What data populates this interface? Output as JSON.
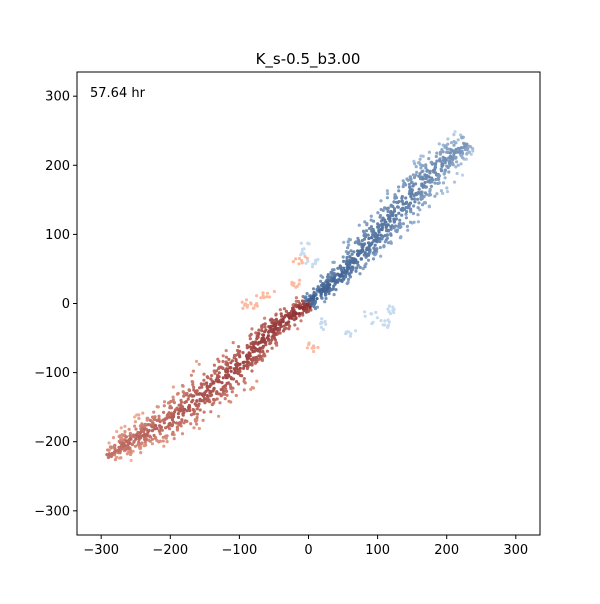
{
  "chart_data": {
    "type": "scatter",
    "title": "K_s-0.5_b3.00",
    "annotation": "57.64 hr",
    "xlabel": "",
    "ylabel": "",
    "xlim": [
      -335,
      335
    ],
    "ylim": [
      -335,
      335
    ],
    "x_ticks": [
      -300,
      -200,
      -100,
      0,
      100,
      200,
      300
    ],
    "y_ticks": [
      -300,
      -200,
      -100,
      0,
      100,
      200,
      300
    ],
    "x_tick_labels": [
      "−300",
      "−200",
      "−100",
      "0",
      "100",
      "200",
      "300"
    ],
    "y_tick_labels": [
      "−300",
      "−200",
      "−100",
      "0",
      "100",
      "200",
      "300"
    ],
    "grid": false,
    "legend": "none",
    "series": [
      {
        "colormap": "Blues",
        "color_dark": "#08306b",
        "color_light": "#c6dbef",
        "spine": [
          [
            0,
            0
          ],
          [
            50,
            45
          ],
          [
            100,
            100
          ],
          [
            150,
            160
          ],
          [
            200,
            210
          ],
          [
            230,
            235
          ]
        ],
        "spread": [
          8,
          14,
          22,
          26,
          22,
          14
        ],
        "outliers": [
          [
            20,
            -30
          ],
          [
            60,
            -40
          ],
          [
            90,
            -20
          ],
          [
            120,
            -5
          ],
          [
            110,
            -30
          ],
          [
            5,
            60
          ],
          [
            -5,
            80
          ]
        ]
      },
      {
        "colormap": "Reds",
        "color_dark": "#67000d",
        "color_light": "#fcbba1",
        "spine": [
          [
            0,
            0
          ],
          [
            -50,
            -35
          ],
          [
            -100,
            -90
          ],
          [
            -150,
            -130
          ],
          [
            -200,
            -170
          ],
          [
            -260,
            -200
          ],
          [
            -290,
            -220
          ]
        ],
        "spread": [
          8,
          14,
          22,
          26,
          22,
          16,
          10
        ],
        "outliers": [
          [
            -20,
            30
          ],
          [
            -60,
            10
          ],
          [
            -80,
            0
          ],
          [
            -10,
            60
          ],
          [
            5,
            -60
          ],
          [
            -90,
            -5
          ]
        ]
      }
    ]
  }
}
